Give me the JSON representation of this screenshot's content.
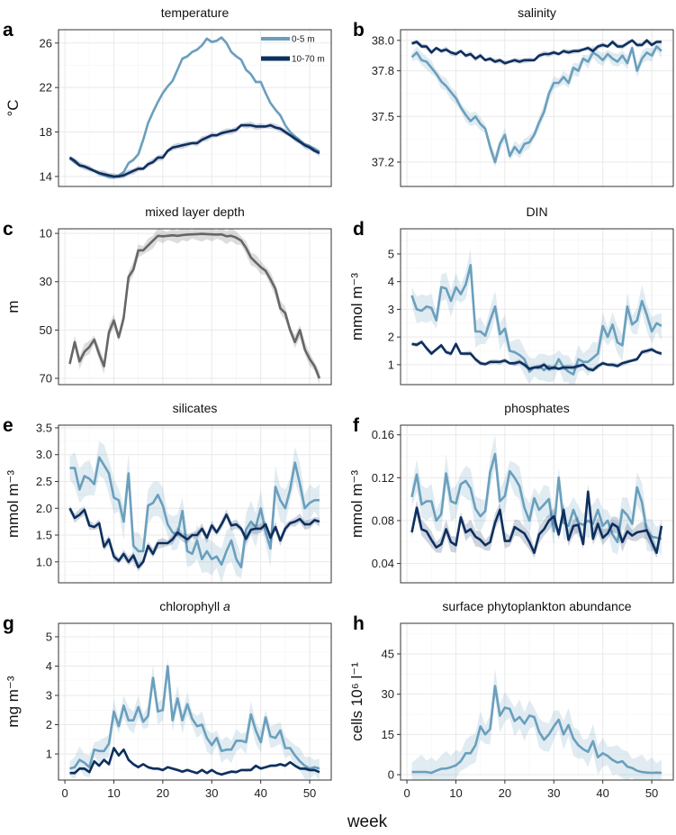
{
  "figure": {
    "xlabel": "week"
  },
  "legend": {
    "items": [
      {
        "label": "0-5 m",
        "color": "#6a9fbd"
      },
      {
        "label": "10-70 m",
        "color": "#0d2f5e"
      }
    ]
  },
  "chart_data": [
    {
      "panel": "a",
      "type": "line",
      "title": "temperature",
      "ylabel": "°C",
      "ylim": [
        13.1,
        27.2
      ],
      "xlim": [
        -1.3,
        54.4
      ],
      "yticks": [
        14,
        18,
        22,
        26
      ],
      "yticklabels": [
        "14",
        "18",
        "22",
        "26"
      ],
      "legend": "top-right",
      "series": [
        {
          "name": "0-5 m",
          "color": "#6a9fbd",
          "ci_halfwidth": 0.15,
          "values": [
            15.6,
            15.3,
            15.0,
            14.9,
            14.7,
            14.5,
            14.3,
            14.1,
            14.0,
            13.95,
            14.1,
            14.4,
            15.2,
            15.5,
            16.0,
            17.3,
            18.8,
            19.8,
            20.7,
            21.5,
            22.1,
            22.6,
            23.6,
            24.6,
            24.8,
            25.2,
            25.4,
            25.8,
            26.4,
            26.1,
            26.2,
            26.5,
            26.0,
            25.2,
            24.8,
            24.5,
            23.6,
            23.2,
            22.5,
            22.5,
            21.5,
            20.6,
            20.0,
            19.5,
            18.6,
            18.0,
            17.6,
            17.2,
            16.9,
            16.7,
            16.5,
            16.2
          ]
        },
        {
          "name": "10-70 m",
          "color": "#0d2f5e",
          "ci_halfwidth": 0.25,
          "values": [
            15.7,
            15.4,
            15.0,
            14.9,
            14.7,
            14.5,
            14.3,
            14.2,
            14.1,
            14.0,
            14.0,
            14.1,
            14.3,
            14.5,
            14.7,
            14.7,
            15.1,
            15.3,
            15.7,
            15.7,
            16.3,
            16.6,
            16.7,
            16.8,
            16.9,
            17.0,
            17.0,
            17.3,
            17.5,
            17.7,
            17.7,
            17.9,
            18.0,
            18.1,
            18.2,
            18.6,
            18.6,
            18.6,
            18.5,
            18.5,
            18.5,
            18.6,
            18.4,
            18.3,
            18.0,
            17.7,
            17.4,
            17.1,
            16.8,
            16.6,
            16.3,
            16.1
          ]
        }
      ]
    },
    {
      "panel": "b",
      "type": "line",
      "title": "salinity",
      "ylabel": "",
      "ylim": [
        37.04,
        38.07
      ],
      "xlim": [
        -1.3,
        54.4
      ],
      "yticks": [
        37.2,
        37.5,
        37.8,
        38.0
      ],
      "yticklabels": [
        "37.2",
        "37.5",
        "37.8",
        "38.0"
      ],
      "series": [
        {
          "name": "0-5 m",
          "color": "#6a9fbd",
          "ci_halfwidth": 0.04,
          "values": [
            37.89,
            37.92,
            37.87,
            37.86,
            37.82,
            37.78,
            37.73,
            37.7,
            37.66,
            37.62,
            37.56,
            37.51,
            37.47,
            37.5,
            37.45,
            37.42,
            37.3,
            37.2,
            37.32,
            37.38,
            37.24,
            37.3,
            37.26,
            37.32,
            37.33,
            37.38,
            37.46,
            37.53,
            37.65,
            37.72,
            37.72,
            37.76,
            37.72,
            37.82,
            37.8,
            37.88,
            37.86,
            37.92,
            37.9,
            37.87,
            37.91,
            37.88,
            37.86,
            37.9,
            37.85,
            37.95,
            37.8,
            37.88,
            37.92,
            37.9,
            37.96,
            37.93
          ]
        },
        {
          "name": "10-70 m",
          "color": "#0d2f5e",
          "ci_halfwidth": 0.015,
          "values": [
            37.98,
            37.99,
            37.96,
            37.96,
            37.92,
            37.95,
            37.93,
            37.94,
            37.92,
            37.91,
            37.93,
            37.9,
            37.91,
            37.88,
            37.9,
            37.87,
            37.88,
            37.86,
            37.87,
            37.85,
            37.86,
            37.87,
            37.86,
            37.87,
            37.87,
            37.87,
            37.9,
            37.91,
            37.91,
            37.92,
            37.91,
            37.93,
            37.92,
            37.93,
            37.93,
            37.94,
            37.95,
            37.93,
            37.96,
            37.97,
            37.96,
            37.99,
            37.96,
            37.96,
            37.98,
            38.0,
            37.97,
            37.97,
            38.0,
            37.97,
            37.99,
            37.99
          ]
        }
      ]
    },
    {
      "panel": "c",
      "type": "line",
      "title": "mixed layer depth",
      "ylabel": "m",
      "ylim": [
        72.6,
        8.1
      ],
      "y_reversed": true,
      "xlim": [
        -1.3,
        54.4
      ],
      "yticks": [
        10,
        30,
        50,
        70
      ],
      "yticklabels": [
        "10",
        "30",
        "50",
        "70"
      ],
      "series": [
        {
          "name": "mixed layer depth",
          "color": "#666666",
          "ci_halfwidth": 2.5,
          "values": [
            64,
            55,
            63,
            59,
            57,
            54,
            60,
            65,
            51,
            46,
            53,
            45,
            28,
            25,
            17,
            17,
            15,
            13,
            11,
            11.2,
            11,
            10.8,
            11,
            10.7,
            10.5,
            10.4,
            10.3,
            10.2,
            10.3,
            10.4,
            10.5,
            10.4,
            11.2,
            11,
            11.8,
            13,
            16,
            20,
            22,
            24,
            25.5,
            29,
            33,
            41,
            43,
            50,
            55,
            50,
            58,
            62,
            65,
            70
          ]
        }
      ]
    },
    {
      "panel": "d",
      "type": "line",
      "title": "DIN",
      "ylabel": "mmol m⁻³",
      "ylim": [
        0.28,
        5.91
      ],
      "xlim": [
        -1.3,
        54.4
      ],
      "yticks": [
        1,
        2,
        3,
        4,
        5
      ],
      "yticklabels": [
        "1",
        "2",
        "3",
        "4",
        "5"
      ],
      "series": [
        {
          "name": "0-5 m",
          "color": "#6a9fbd",
          "ci_halfwidth": 0.45,
          "values": [
            3.5,
            3.0,
            2.95,
            3.1,
            3.05,
            2.6,
            3.8,
            3.75,
            3.3,
            3.8,
            3.55,
            3.9,
            4.6,
            2.2,
            2.2,
            2.05,
            2.6,
            3.1,
            2.1,
            2.3,
            1.5,
            1.45,
            1.35,
            1.2,
            0.75,
            0.9,
            0.95,
            0.8,
            0.95,
            0.85,
            1.2,
            0.9,
            0.75,
            0.65,
            1.2,
            1.1,
            1.1,
            1.25,
            1.4,
            2.4,
            2.0,
            2.45,
            1.8,
            1.7,
            3.1,
            2.45,
            2.6,
            3.3,
            2.8,
            2.2,
            2.5,
            2.4
          ]
        },
        {
          "name": "10-70 m",
          "color": "#0d2f5e",
          "ci_halfwidth": 0.08,
          "values": [
            1.75,
            1.72,
            1.82,
            1.6,
            1.4,
            1.55,
            1.7,
            1.45,
            1.4,
            1.75,
            1.4,
            1.4,
            1.4,
            1.2,
            1.05,
            1.02,
            1.1,
            1.1,
            1.1,
            1.15,
            1.05,
            1.05,
            1.1,
            1.0,
            0.85,
            0.9,
            0.9,
            1.0,
            0.85,
            0.9,
            0.85,
            0.9,
            0.9,
            0.9,
            0.95,
            1.0,
            0.85,
            0.8,
            0.95,
            1.05,
            1.0,
            1.0,
            0.95,
            1.05,
            1.1,
            1.15,
            1.2,
            1.45,
            1.5,
            1.55,
            1.45,
            1.4
          ]
        }
      ]
    },
    {
      "panel": "e",
      "type": "line",
      "title": "silicates",
      "ylabel": "mmol m⁻³",
      "ylim": [
        0.61,
        3.55
      ],
      "xlim": [
        -1.3,
        54.4
      ],
      "yticks": [
        1.0,
        1.5,
        2.0,
        2.5,
        3.0,
        3.5
      ],
      "yticklabels": [
        "1.0",
        "1.5",
        "2.0",
        "2.5",
        "3.0",
        "3.5"
      ],
      "series": [
        {
          "name": "0-5 m",
          "color": "#6a9fbd",
          "ci_halfwidth": 0.3,
          "values": [
            2.75,
            2.75,
            2.35,
            2.6,
            2.55,
            2.45,
            2.95,
            2.8,
            2.65,
            2.2,
            2.15,
            1.75,
            2.65,
            1.3,
            1.2,
            1.2,
            2.05,
            2.1,
            2.25,
            2.05,
            1.7,
            1.55,
            1.5,
            1.95,
            1.2,
            1.15,
            1.4,
            1.05,
            1.2,
            1.05,
            1.1,
            0.95,
            1.2,
            1.4,
            1.05,
            0.9,
            1.6,
            1.75,
            1.65,
            2.0,
            1.55,
            1.25,
            2.4,
            2.15,
            2.0,
            2.35,
            2.85,
            2.45,
            2.0,
            2.1,
            2.15,
            2.15
          ]
        },
        {
          "name": "10-70 m",
          "color": "#0d2f5e",
          "ci_halfwidth": 0.08,
          "values": [
            2.0,
            1.82,
            1.88,
            1.97,
            1.68,
            1.65,
            1.72,
            1.28,
            1.42,
            1.1,
            1.02,
            1.15,
            1.0,
            1.12,
            0.9,
            1.0,
            1.3,
            1.15,
            1.35,
            1.35,
            1.35,
            1.42,
            1.55,
            1.48,
            1.42,
            1.5,
            1.5,
            1.62,
            1.45,
            1.68,
            1.55,
            1.7,
            1.88,
            1.68,
            1.7,
            1.62,
            1.43,
            1.6,
            1.62,
            1.62,
            1.7,
            1.45,
            1.65,
            1.4,
            1.62,
            1.72,
            1.75,
            1.8,
            1.7,
            1.7,
            1.78,
            1.75
          ]
        }
      ]
    },
    {
      "panel": "f",
      "type": "line",
      "title": "phosphates",
      "ylabel": "mmol m⁻³",
      "ylim": [
        0.022,
        0.169
      ],
      "xlim": [
        -1.3,
        54.4
      ],
      "yticks": [
        0.04,
        0.08,
        0.12,
        0.16
      ],
      "yticklabels": [
        "0.04",
        "0.08",
        "0.12",
        "0.16"
      ],
      "series": [
        {
          "name": "0-5 m",
          "color": "#6a9fbd",
          "ci_halfwidth": 0.014,
          "values": [
            0.102,
            0.123,
            0.095,
            0.098,
            0.098,
            0.08,
            0.086,
            0.124,
            0.098,
            0.096,
            0.114,
            0.117,
            0.11,
            0.091,
            0.084,
            0.089,
            0.125,
            0.142,
            0.098,
            0.103,
            0.126,
            0.12,
            0.112,
            0.092,
            0.08,
            0.101,
            0.09,
            0.095,
            0.1,
            0.07,
            0.12,
            0.078,
            0.075,
            0.09,
            0.078,
            0.076,
            0.08,
            0.077,
            0.09,
            0.075,
            0.08,
            0.067,
            0.06,
            0.09,
            0.085,
            0.077,
            0.111,
            0.097,
            0.07,
            0.065,
            0.064,
            0.063
          ]
        },
        {
          "name": "10-70 m",
          "color": "#0d2f5e",
          "ci_halfwidth": 0.007,
          "values": [
            0.069,
            0.092,
            0.072,
            0.07,
            0.062,
            0.055,
            0.058,
            0.072,
            0.06,
            0.057,
            0.083,
            0.069,
            0.072,
            0.065,
            0.062,
            0.057,
            0.06,
            0.078,
            0.09,
            0.061,
            0.061,
            0.074,
            0.071,
            0.068,
            0.06,
            0.05,
            0.067,
            0.072,
            0.08,
            0.084,
            0.067,
            0.09,
            0.062,
            0.075,
            0.076,
            0.058,
            0.107,
            0.063,
            0.077,
            0.064,
            0.068,
            0.077,
            0.074,
            0.06,
            0.07,
            0.066,
            0.069,
            0.07,
            0.071,
            0.06,
            0.05,
            0.075
          ]
        }
      ]
    },
    {
      "panel": "g",
      "type": "line",
      "title": "chlorophyll",
      "title_italic": "a",
      "ylabel": "mg m⁻³",
      "ylim": [
        0.11,
        5.46
      ],
      "xlim": [
        -1.3,
        54.4
      ],
      "yticks": [
        1,
        2,
        3,
        4,
        5
      ],
      "yticklabels": [
        "1",
        "2",
        "3",
        "4",
        "5"
      ],
      "xticks": [
        0,
        10,
        20,
        30,
        40,
        50
      ],
      "xticklabels": [
        "0",
        "10",
        "20",
        "30",
        "40",
        "50"
      ],
      "series": [
        {
          "name": "0-5 m",
          "color": "#6a9fbd",
          "ci_halfwidth": 0.35,
          "values": [
            0.5,
            0.55,
            0.8,
            0.7,
            0.55,
            1.15,
            1.1,
            1.1,
            1.35,
            2.45,
            1.95,
            2.65,
            2.15,
            2.15,
            2.6,
            2.1,
            2.3,
            3.6,
            2.45,
            2.5,
            4.0,
            2.15,
            2.9,
            2.15,
            2.7,
            2.2,
            1.95,
            2.0,
            1.55,
            1.3,
            1.55,
            1.1,
            1.15,
            1.15,
            1.45,
            1.45,
            1.4,
            2.35,
            1.8,
            1.4,
            2.25,
            1.6,
            1.55,
            1.8,
            1.2,
            1.2,
            0.95,
            0.75,
            0.6,
            0.5,
            0.55,
            0.5
          ]
        },
        {
          "name": "10-70 m",
          "color": "#0d2f5e",
          "ci_halfwidth": 0.05,
          "values": [
            0.35,
            0.35,
            0.5,
            0.5,
            0.38,
            0.75,
            0.6,
            0.8,
            0.65,
            1.2,
            0.95,
            1.15,
            0.8,
            0.65,
            0.55,
            0.65,
            0.55,
            0.5,
            0.5,
            0.45,
            0.55,
            0.5,
            0.45,
            0.4,
            0.45,
            0.4,
            0.35,
            0.45,
            0.35,
            0.45,
            0.35,
            0.3,
            0.35,
            0.4,
            0.38,
            0.45,
            0.45,
            0.45,
            0.6,
            0.5,
            0.55,
            0.6,
            0.6,
            0.65,
            0.6,
            0.72,
            0.6,
            0.5,
            0.5,
            0.45,
            0.45,
            0.38
          ]
        }
      ]
    },
    {
      "panel": "h",
      "type": "line",
      "title": "surface phytoplankton abundance",
      "ylabel": "cells 10⁶ l⁻¹",
      "ylim": [
        -2.0,
        56.4
      ],
      "xlim": [
        -1.3,
        54.4
      ],
      "yticks": [
        0,
        15,
        30,
        45
      ],
      "yticklabels": [
        "0",
        "15",
        "30",
        "45"
      ],
      "xticks": [
        0,
        10,
        20,
        30,
        40,
        50
      ],
      "xticklabels": [
        "0",
        "10",
        "20",
        "30",
        "40",
        "50"
      ],
      "series": [
        {
          "name": "0-5 m",
          "color": "#6a9fbd",
          "ci_halfwidth": 5,
          "values": [
            1,
            1,
            1,
            1,
            0.7,
            1.5,
            2.2,
            2.3,
            2.8,
            3.5,
            5,
            8,
            8,
            11,
            18,
            15,
            17,
            33,
            22,
            25,
            24.5,
            20,
            21.5,
            19,
            22,
            21.5,
            16,
            13,
            15,
            18,
            20.5,
            15,
            18.5,
            13.5,
            11,
            9.5,
            8.5,
            12.5,
            6.5,
            8,
            7,
            5.5,
            4.5,
            5,
            3,
            2.5,
            1.5,
            1,
            0.8,
            0.7,
            0.8,
            0.7
          ]
        }
      ]
    }
  ]
}
